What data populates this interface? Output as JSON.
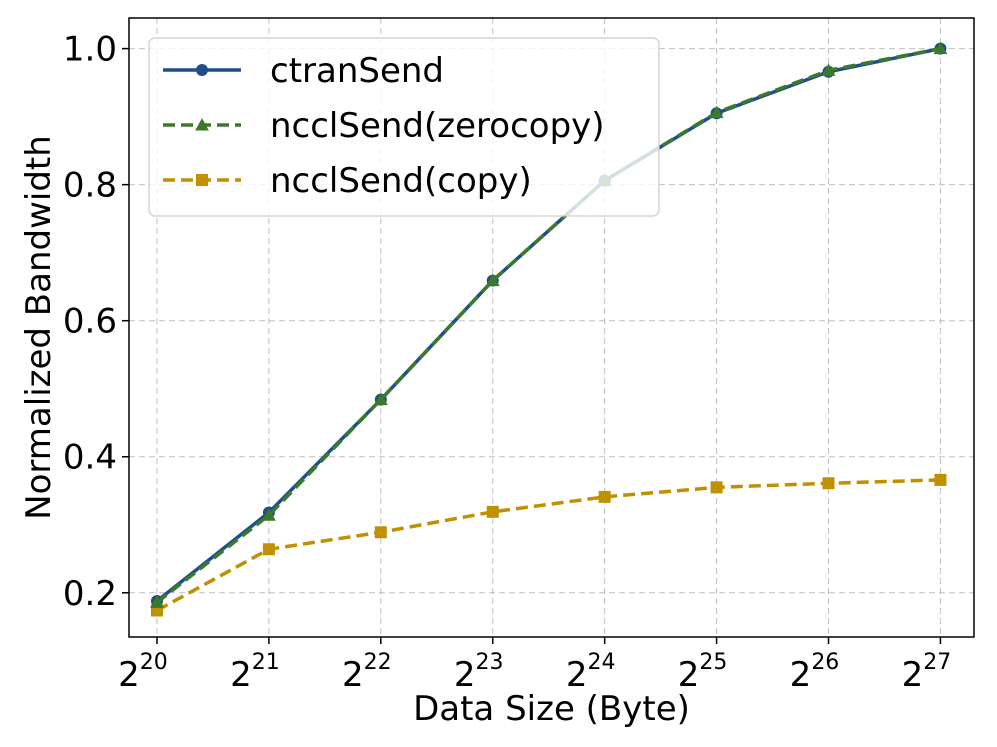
{
  "chart_data": {
    "type": "line",
    "title": "",
    "xlabel": "Data Size (Byte)",
    "ylabel": "Normalized Bandwidth",
    "x": [
      20,
      21,
      22,
      23,
      24,
      25,
      26,
      27
    ],
    "x_tick_labels": [
      {
        "base": "2",
        "exp": "20"
      },
      {
        "base": "2",
        "exp": "21"
      },
      {
        "base": "2",
        "exp": "22"
      },
      {
        "base": "2",
        "exp": "23"
      },
      {
        "base": "2",
        "exp": "24"
      },
      {
        "base": "2",
        "exp": "25"
      },
      {
        "base": "2",
        "exp": "26"
      },
      {
        "base": "2",
        "exp": "27"
      }
    ],
    "y_ticks": [
      "0.2",
      "0.4",
      "0.6",
      "0.8",
      "1.0"
    ],
    "ylim": [
      0.135,
      1.045
    ],
    "xlim": [
      19.75,
      27.3
    ],
    "grid": true,
    "legend_position": "top-left",
    "series": [
      {
        "name": "ctranSend",
        "color": "#1f4e8c",
        "linestyle": "solid",
        "marker": "circle",
        "values": [
          0.188,
          0.318,
          0.484,
          0.659,
          0.806,
          0.905,
          0.966,
          1.0
        ]
      },
      {
        "name": "ncclSend(zerocopy)",
        "color": "#3a7a2a",
        "linestyle": "dashed",
        "marker": "triangle",
        "values": [
          0.186,
          0.314,
          0.484,
          0.659,
          0.806,
          0.906,
          0.968,
          1.0
        ]
      },
      {
        "name": "ncclSend(copy)",
        "color": "#c09000",
        "linestyle": "dashed",
        "marker": "square",
        "values": [
          0.174,
          0.264,
          0.289,
          0.319,
          0.341,
          0.355,
          0.361,
          0.366
        ]
      }
    ]
  }
}
